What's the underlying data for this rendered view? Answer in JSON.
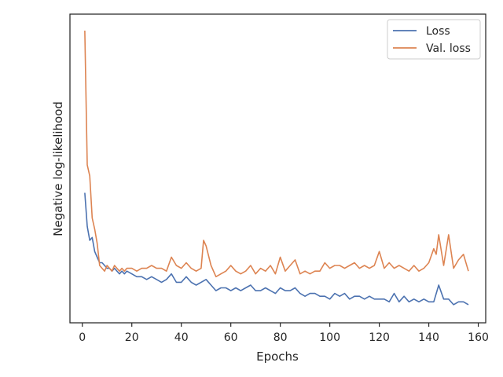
{
  "chart_data": {
    "type": "line",
    "xlabel": "Epochs",
    "ylabel": "Negative log-likelihood",
    "xlim": [
      -5,
      163
    ],
    "ylim": [
      0.0,
      1.0
    ],
    "x_ticks": [
      0,
      20,
      40,
      60,
      80,
      100,
      120,
      140,
      160
    ],
    "y_ticks_labeled": false,
    "grid": false,
    "legend_position": "top-right",
    "series": [
      {
        "name": "Loss",
        "color": "#4c72b0",
        "x": [
          1,
          2,
          3,
          4,
          5,
          6,
          7,
          8,
          9,
          10,
          11,
          12,
          13,
          14,
          15,
          16,
          17,
          18,
          20,
          22,
          24,
          26,
          28,
          30,
          32,
          34,
          36,
          38,
          40,
          42,
          44,
          46,
          48,
          50,
          52,
          54,
          56,
          58,
          60,
          62,
          64,
          66,
          68,
          70,
          72,
          74,
          76,
          78,
          80,
          82,
          84,
          86,
          88,
          90,
          92,
          94,
          96,
          98,
          100,
          102,
          104,
          106,
          108,
          110,
          112,
          114,
          116,
          118,
          120,
          122,
          124,
          126,
          128,
          130,
          132,
          134,
          136,
          138,
          140,
          142,
          144,
          146,
          148,
          150,
          152,
          154,
          156
        ],
        "values": [
          0.42,
          0.3,
          0.25,
          0.26,
          0.21,
          0.19,
          0.17,
          0.17,
          0.16,
          0.15,
          0.15,
          0.14,
          0.15,
          0.14,
          0.13,
          0.14,
          0.13,
          0.14,
          0.13,
          0.12,
          0.12,
          0.11,
          0.12,
          0.11,
          0.1,
          0.11,
          0.13,
          0.1,
          0.1,
          0.12,
          0.1,
          0.09,
          0.1,
          0.11,
          0.09,
          0.07,
          0.08,
          0.08,
          0.07,
          0.08,
          0.07,
          0.08,
          0.09,
          0.07,
          0.07,
          0.08,
          0.07,
          0.06,
          0.08,
          0.07,
          0.07,
          0.08,
          0.06,
          0.05,
          0.06,
          0.06,
          0.05,
          0.05,
          0.04,
          0.06,
          0.05,
          0.06,
          0.04,
          0.05,
          0.05,
          0.04,
          0.05,
          0.04,
          0.04,
          0.04,
          0.03,
          0.06,
          0.03,
          0.05,
          0.03,
          0.04,
          0.03,
          0.04,
          0.03,
          0.03,
          0.09,
          0.04,
          0.04,
          0.02,
          0.03,
          0.03,
          0.02
        ]
      },
      {
        "name": "Val. loss",
        "color": "#dd8452",
        "x": [
          1,
          2,
          3,
          4,
          5,
          6,
          7,
          8,
          9,
          10,
          11,
          12,
          13,
          14,
          15,
          16,
          17,
          18,
          20,
          22,
          24,
          26,
          28,
          30,
          32,
          34,
          36,
          38,
          40,
          42,
          44,
          46,
          48,
          49,
          50,
          52,
          54,
          56,
          58,
          60,
          62,
          64,
          66,
          68,
          70,
          72,
          74,
          76,
          78,
          80,
          82,
          84,
          86,
          88,
          90,
          92,
          94,
          96,
          98,
          100,
          102,
          104,
          106,
          108,
          110,
          112,
          114,
          116,
          118,
          120,
          122,
          124,
          126,
          128,
          130,
          132,
          134,
          136,
          138,
          140,
          142,
          143,
          144,
          146,
          148,
          150,
          152,
          154,
          156
        ],
        "values": [
          1.0,
          0.52,
          0.48,
          0.33,
          0.29,
          0.24,
          0.16,
          0.15,
          0.14,
          0.16,
          0.15,
          0.14,
          0.16,
          0.15,
          0.14,
          0.15,
          0.14,
          0.15,
          0.15,
          0.14,
          0.15,
          0.15,
          0.16,
          0.15,
          0.15,
          0.14,
          0.19,
          0.16,
          0.15,
          0.17,
          0.15,
          0.14,
          0.15,
          0.25,
          0.23,
          0.16,
          0.12,
          0.13,
          0.14,
          0.16,
          0.14,
          0.13,
          0.14,
          0.16,
          0.13,
          0.15,
          0.14,
          0.16,
          0.13,
          0.19,
          0.14,
          0.16,
          0.18,
          0.13,
          0.14,
          0.13,
          0.14,
          0.14,
          0.17,
          0.15,
          0.16,
          0.16,
          0.15,
          0.16,
          0.17,
          0.15,
          0.16,
          0.15,
          0.16,
          0.21,
          0.15,
          0.17,
          0.15,
          0.16,
          0.15,
          0.14,
          0.16,
          0.14,
          0.15,
          0.17,
          0.22,
          0.2,
          0.27,
          0.16,
          0.27,
          0.15,
          0.18,
          0.2,
          0.14
        ]
      }
    ]
  }
}
